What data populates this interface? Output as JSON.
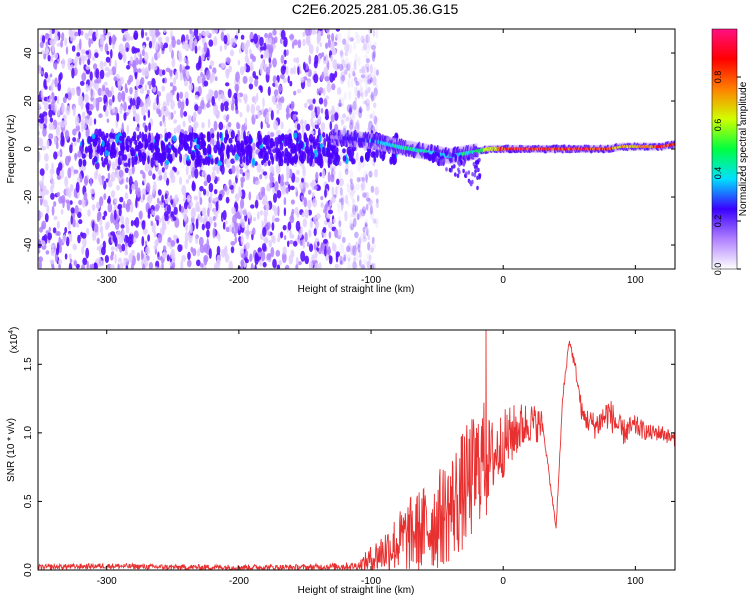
{
  "title": "C2E6.2025.281.05.36.G15",
  "chart_data": [
    {
      "type": "heatmap",
      "name": "spectrogram",
      "xlabel": "Height of straight line (km)",
      "ylabel": "Frequency (Hz)",
      "xlim": [
        -352,
        130
      ],
      "ylim": [
        -50,
        50
      ],
      "xticks": [
        -300,
        -200,
        -100,
        0,
        100
      ],
      "yticks": [
        -40,
        -20,
        0,
        20,
        40
      ],
      "xtick_labels": [
        "-300",
        "-200",
        "-100",
        "0",
        "100"
      ],
      "ytick_labels": [
        "-40",
        "-20",
        "0",
        "20",
        "40"
      ],
      "noise_region_km": [
        -352,
        -105
      ],
      "signal_track": {
        "x": [
          -130,
          -110,
          -95,
          -80,
          -70,
          -60,
          -50,
          -40,
          -30,
          -20,
          -10,
          0,
          20,
          40,
          60,
          80,
          90,
          100,
          110,
          120,
          130
        ],
        "freq": [
          5,
          4,
          3,
          1,
          0,
          -1,
          -2,
          -3,
          -2,
          -1,
          0,
          0,
          0,
          0,
          0,
          0,
          1,
          1,
          1,
          1,
          2
        ],
        "amplitude": [
          0.15,
          0.3,
          0.35,
          0.45,
          0.5,
          0.45,
          0.45,
          0.4,
          0.45,
          0.5,
          0.65,
          0.9,
          0.92,
          0.95,
          0.95,
          0.9,
          0.7,
          0.75,
          0.8,
          0.9,
          0.95
        ]
      },
      "colorbar": {
        "label": "Normalized spectral amplitude",
        "range": [
          0,
          1
        ],
        "ticks": [
          0.0,
          0.2,
          0.4,
          0.6,
          0.8
        ],
        "tick_labels": [
          "0.0",
          "0.2",
          "0.4",
          "0.6",
          "0.8"
        ],
        "colors": [
          "#ffffff",
          "#b080ff",
          "#3a00ff",
          "#00e0ff",
          "#00ff40",
          "#d0ff00",
          "#ff8000",
          "#ff0000",
          "#ff1080"
        ]
      }
    },
    {
      "type": "line",
      "name": "snr",
      "xlabel": "Height of straight line (km)",
      "ylabel": "SNR (10 * v/v)",
      "y_multiplier": "(x10",
      "y_multiplier_exp": "4",
      "y_multiplier_close": ")",
      "xlim": [
        -352,
        130
      ],
      "ylim": [
        0,
        1.75
      ],
      "xticks": [
        -300,
        -200,
        -100,
        0,
        100
      ],
      "yticks": [
        0.0,
        0.5,
        1.0,
        1.5
      ],
      "xtick_labels": [
        "-300",
        "-200",
        "-100",
        "0",
        "100"
      ],
      "ytick_labels": [
        "0.0",
        "0.5",
        "1.0",
        "1.5"
      ],
      "color": "#e83030",
      "series_envelope": {
        "x": [
          -352,
          -300,
          -250,
          -200,
          -150,
          -110,
          -100,
          -90,
          -80,
          -70,
          -60,
          -50,
          -40,
          -30,
          -20,
          -15,
          -10,
          0,
          10,
          20,
          30,
          40,
          45,
          50,
          55,
          60,
          70,
          80,
          90,
          100,
          110,
          120,
          130
        ],
        "y": [
          0.02,
          0.03,
          0.02,
          0.02,
          0.02,
          0.03,
          0.08,
          0.14,
          0.2,
          0.26,
          0.3,
          0.36,
          0.45,
          0.58,
          0.72,
          0.85,
          0.8,
          0.92,
          1.02,
          1.08,
          1.05,
          0.3,
          1.25,
          1.68,
          1.45,
          1.12,
          1.05,
          1.15,
          1.0,
          1.05,
          1.0,
          1.0,
          0.95
        ],
        "amplitude": [
          0.02,
          0.02,
          0.02,
          0.02,
          0.02,
          0.03,
          0.1,
          0.16,
          0.22,
          0.28,
          0.32,
          0.36,
          0.4,
          0.45,
          0.45,
          0.4,
          0.3,
          0.25,
          0.2,
          0.15,
          0.12,
          0.05,
          0.04,
          0.03,
          0.05,
          0.08,
          0.1,
          0.12,
          0.1,
          0.08,
          0.06,
          0.06,
          0.05
        ]
      },
      "spike": {
        "x": -13,
        "y": 1.75
      }
    }
  ]
}
